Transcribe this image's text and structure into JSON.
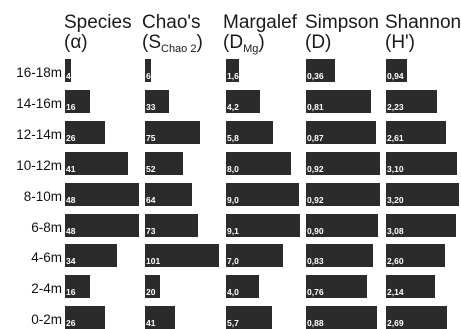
{
  "chart_data": {
    "type": "bar",
    "orientation": "horizontal",
    "categories": [
      "16-18m",
      "14-16m",
      "12-14m",
      "10-12m",
      "8-10m",
      "6-8m",
      "4-6m",
      "2-4m",
      "0-2m"
    ],
    "series": [
      {
        "name": "Species (α)",
        "labels": [
          "4",
          "16",
          "26",
          "41",
          "48",
          "48",
          "34",
          "16",
          "26"
        ],
        "values": [
          4,
          16,
          26,
          41,
          48,
          48,
          34,
          16,
          26
        ],
        "max": 48
      },
      {
        "name": "Chao's (SChao 2)",
        "labels": [
          "6",
          "33",
          "75",
          "52",
          "64",
          "73",
          "101",
          "20",
          "41"
        ],
        "values": [
          6,
          33,
          75,
          52,
          64,
          73,
          101,
          20,
          41
        ],
        "max": 101
      },
      {
        "name": "Margalef (DMg)",
        "labels": [
          "1,6",
          "4,2",
          "5,8",
          "8,0",
          "9,0",
          "9,1",
          "7,0",
          "4,0",
          "5,7"
        ],
        "values": [
          1.6,
          4.2,
          5.8,
          8.0,
          9.0,
          9.1,
          7.0,
          4.0,
          5.7
        ],
        "max": 9.1
      },
      {
        "name": "Simpson (D)",
        "labels": [
          "0,36",
          "0,81",
          "0,87",
          "0,92",
          "0,92",
          "0,90",
          "0,83",
          "0,76",
          "0,88"
        ],
        "values": [
          0.36,
          0.81,
          0.87,
          0.92,
          0.92,
          0.9,
          0.83,
          0.76,
          0.88
        ],
        "max": 0.92
      },
      {
        "name": "Shannon (H')",
        "labels": [
          "0,94",
          "2,23",
          "2,61",
          "3,10",
          "3,20",
          "3,08",
          "2,60",
          "2,14",
          "2,69"
        ],
        "values": [
          0.94,
          2.23,
          2.61,
          3.1,
          3.2,
          3.08,
          2.6,
          2.14,
          2.69
        ],
        "max": 3.2
      }
    ]
  },
  "headers": {
    "species": {
      "line1": "Species",
      "line2": "(α)"
    },
    "chao": {
      "line1": "Chao's",
      "line2_main": "(S",
      "line2_sub": "Chao 2",
      "line2_end": ")"
    },
    "margalef": {
      "line1": "Margalef",
      "line2_main": "(D",
      "line2_sub": "Mg",
      "line2_end": ")"
    },
    "simpson": {
      "line1": "Simpson",
      "line2": "(D)"
    },
    "shannon": {
      "line1": "Shannon",
      "line2": "(H')"
    }
  },
  "colors": {
    "bar": "#2b2b2b",
    "value_text": "#ffffff",
    "text": "#1a1a1a"
  }
}
